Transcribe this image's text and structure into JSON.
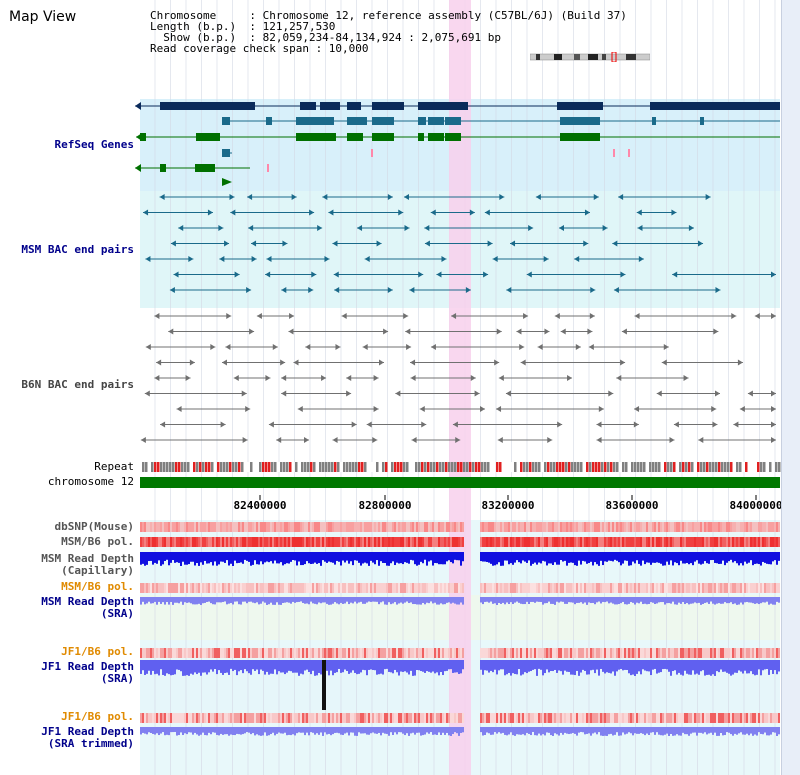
{
  "view": {
    "title": "Map View",
    "info_lines": [
      "Chromosome     : Chromosome 12, reference assembly (C57BL/6J) (Build 37)",
      "Length (b.p.)  : 121,257,530",
      "  Show (b.p.)  : 82,059,234-84,134,924 : 2,075,691 bp",
      "Read coverage check span : 10,000"
    ]
  },
  "tracks": {
    "refseq": "RefSeq Genes",
    "msm_bac": "MSM BAC end pairs",
    "b6n_bac": "B6N BAC end pairs",
    "repeat": "Repeat",
    "chromosome": "chromosome 12",
    "dbsnp": "dbSNP(Mouse)",
    "msm_b6_pol": "MSM/B6 pol.",
    "msm_depth_cap_1": "MSM Read Depth",
    "msm_depth_cap_2": "(Capillary)",
    "msm_b6_pol2": "MSM/B6 pol.",
    "msm_depth_sra_1": "MSM Read Depth",
    "msm_depth_sra_2": "(SRA)",
    "jf1_b6_pol": "JF1/B6 pol.",
    "jf1_depth_1": "JF1 Read Depth",
    "jf1_depth_2": "(SRA)",
    "jf1_b6_pol2": "JF1/B6 pol.",
    "jf1_trim_1": "JF1 Read Depth",
    "jf1_trim_2": "(SRA trimmed)"
  },
  "axis": {
    "ticks": [
      "82400000",
      "82800000",
      "83200000",
      "83600000",
      "84000000"
    ]
  },
  "colors": {
    "navy": "#0a2a5a",
    "refseq_bg": "#d8f0fa",
    "msm_bg": "#e0f6f8",
    "b6n_bg": "#ffffff",
    "highlight": "#f8d0ec",
    "chromosome": "#007800",
    "teal": "#1a6a8a",
    "green": "#007000",
    "gray": "#707070",
    "label_blue": "#00008b",
    "label_orange": "#e08a00",
    "depth_blue": "#1010e0",
    "depth_light": "#8080f0",
    "pol_red": "#f04040"
  }
}
